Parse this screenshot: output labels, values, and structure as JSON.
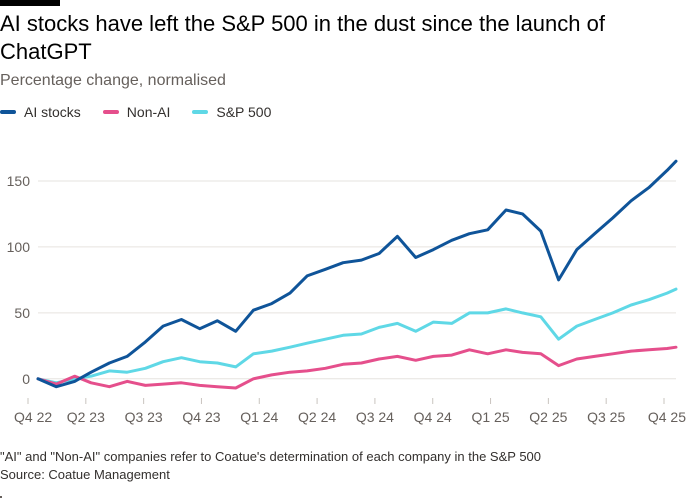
{
  "title": "AI stocks have left the S&P 500 in the dust since the launch of ChatGPT",
  "subtitle": "Percentage change, normalised",
  "footnote": "\"AI\" and \"Non-AI\" companies refer to Coatue's determination of each company in the S&P 500",
  "source": "Source: Coatue Management",
  "colors": {
    "ai": "#0f5499",
    "non_ai": "#e54f8c",
    "sp500": "#5fd8e6",
    "grid": "#e6e3df",
    "axis_text": "#66605c"
  },
  "legend": [
    {
      "label": "AI stocks",
      "color": "#0f5499"
    },
    {
      "label": "Non-AI",
      "color": "#e54f8c"
    },
    {
      "label": "S&P 500",
      "color": "#5fd8e6"
    }
  ],
  "chart_data": {
    "type": "line",
    "x_ticks": [
      "Q4 22",
      "Q2 23",
      "Q3 23",
      "Q4 23",
      "Q1 24",
      "Q2 24",
      "Q3 24",
      "Q4 24",
      "Q1 25",
      "Q2 25",
      "Q3 25",
      "Q4 25"
    ],
    "y_ticks": [
      0,
      50,
      100,
      150
    ],
    "ylim": [
      -10,
      175
    ],
    "x": [
      "2022-11-30",
      "2022-12-31",
      "2023-01-31",
      "2023-02-28",
      "2023-03-31",
      "2023-04-30",
      "2023-05-31",
      "2023-06-30",
      "2023-07-31",
      "2023-08-31",
      "2023-09-30",
      "2023-10-31",
      "2023-11-30",
      "2023-12-31",
      "2024-01-31",
      "2024-02-29",
      "2024-03-31",
      "2024-04-30",
      "2024-05-31",
      "2024-06-30",
      "2024-07-31",
      "2024-08-31",
      "2024-09-30",
      "2024-10-31",
      "2024-11-30",
      "2024-12-31",
      "2025-01-31",
      "2025-02-28",
      "2025-03-31",
      "2025-04-30",
      "2025-05-31",
      "2025-06-30",
      "2025-07-31",
      "2025-08-31",
      "2025-09-30",
      "2025-10-31",
      "2025-11-15"
    ],
    "series": [
      {
        "name": "AI stocks",
        "color": "#0f5499",
        "values": [
          0,
          -6,
          -2,
          5,
          12,
          17,
          28,
          40,
          45,
          38,
          44,
          36,
          52,
          57,
          65,
          78,
          83,
          88,
          90,
          95,
          108,
          92,
          98,
          105,
          110,
          113,
          128,
          125,
          112,
          75,
          98,
          110,
          122,
          135,
          145,
          158,
          165
        ]
      },
      {
        "name": "Non-AI",
        "color": "#e54f8c",
        "values": [
          0,
          -4,
          2,
          -3,
          -6,
          -2,
          -5,
          -4,
          -3,
          -5,
          -6,
          -7,
          0,
          3,
          5,
          6,
          8,
          11,
          12,
          15,
          17,
          14,
          17,
          18,
          22,
          19,
          22,
          20,
          19,
          10,
          15,
          17,
          19,
          21,
          22,
          23,
          24
        ]
      },
      {
        "name": "S&P 500",
        "color": "#5fd8e6",
        "values": [
          0,
          -3,
          0,
          2,
          6,
          5,
          8,
          13,
          16,
          13,
          12,
          9,
          19,
          21,
          24,
          27,
          30,
          33,
          34,
          39,
          42,
          36,
          43,
          42,
          50,
          50,
          53,
          50,
          47,
          30,
          40,
          45,
          50,
          56,
          60,
          65,
          68
        ]
      }
    ]
  }
}
